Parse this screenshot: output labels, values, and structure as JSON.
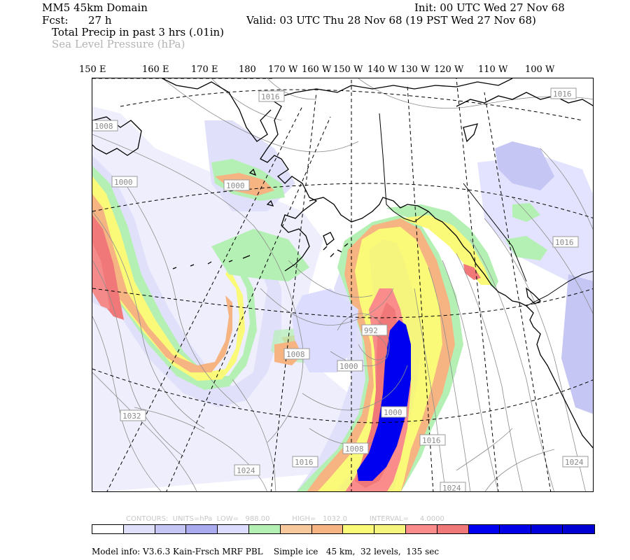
{
  "header": {
    "domain_title": "MM5 45km Domain",
    "init": "Init: 00 UTC Wed 27 Nov 68",
    "fcst_label": "Fcst:",
    "fcst_value": "27 h",
    "valid": "Valid: 03 UTC Thu 28 Nov 68 (19 PST Wed 27 Nov 68)",
    "field1": "Total Precip in past 3 hrs (.01in)",
    "field2": "Sea Level Pressure (hPa)"
  },
  "chart_data": {
    "type": "heatmap",
    "longitude_labels": [
      "150 E",
      "160 E",
      "170 E",
      "180",
      "170 W",
      "160 W",
      "150 W",
      "140 W",
      "130 W",
      "120 W",
      "110 W",
      "100 W"
    ],
    "isobar_labels": [
      "1016",
      "1016",
      "1008",
      "1000",
      "1000",
      "1016",
      "992",
      "1008",
      "1000",
      "1000",
      "1032",
      "1008",
      "1016",
      "1024",
      "1016",
      "1024",
      "1024"
    ],
    "contours_info": {
      "text": "CONTOURS:  UNITS=hPa  LOW=   988.00          HIGH=   1032.0          INTERVAL=     4.0000",
      "units": "hPa",
      "low": 988.0,
      "high": 1032.0,
      "interval": 4.0
    },
    "colorbar": [
      "#ffffff",
      "#e0e0fa",
      "#c6c6f5",
      "#aaaaee",
      "#dcdcff",
      "#b4f0b4",
      "#f7c89b",
      "#f5b482",
      "#fafa78",
      "#f5f57d",
      "#fa8c8c",
      "#f07878",
      "#0000f0",
      "#0000e6",
      "#0000dc",
      "#0000d2"
    ]
  },
  "footer": {
    "model_info": "Model info: V3.6.3 Kain-Frsch MRF PBL    Simple ice   45 km,  32 levels,  135 sec"
  }
}
